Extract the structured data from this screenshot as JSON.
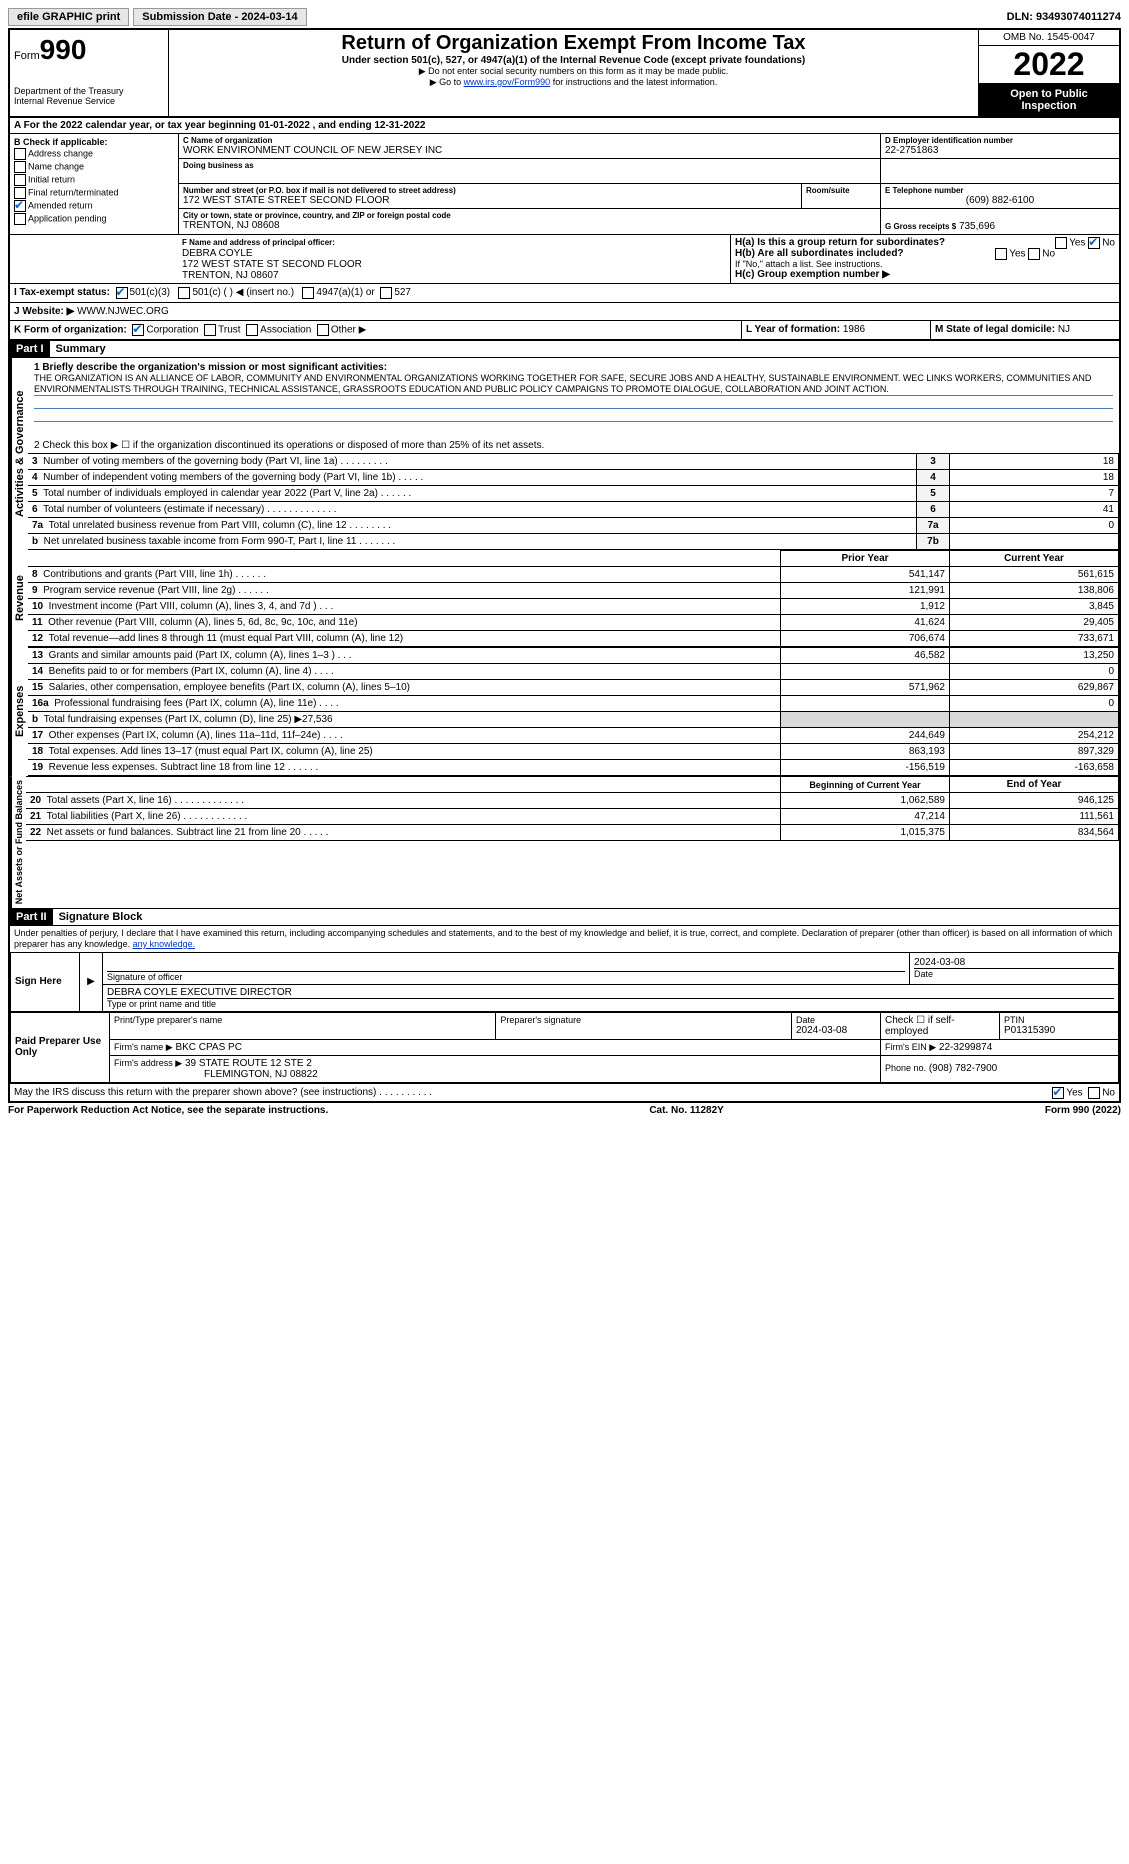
{
  "topbar": {
    "efile": "efile GRAPHIC print",
    "submission_btn": "Submission Date - 2024-03-14",
    "dln": "DLN: 93493074011274"
  },
  "header": {
    "form_word": "Form",
    "form_num": "990",
    "dept": "Department of the Treasury\nInternal Revenue Service",
    "title": "Return of Organization Exempt From Income Tax",
    "sub1": "Under section 501(c), 527, or 4947(a)(1) of the Internal Revenue Code (except private foundations)",
    "sub2": "▶ Do not enter social security numbers on this form as it may be made public.",
    "sub3_pre": "▶ Go to ",
    "sub3_link": "www.irs.gov/Form990",
    "sub3_post": " for instructions and the latest information.",
    "omb": "OMB No. 1545-0047",
    "year": "2022",
    "open": "Open to Public Inspection"
  },
  "A": {
    "text": "For the 2022 calendar year, or tax year beginning 01-01-2022    , and ending 12-31-2022"
  },
  "B": {
    "label": "B Check if applicable:",
    "items": [
      "Address change",
      "Name change",
      "Initial return",
      "Final return/terminated",
      "Amended return",
      "Application pending"
    ],
    "checked_index": 4
  },
  "C": {
    "name_lbl": "C Name of organization",
    "name": "WORK ENVIRONMENT COUNCIL OF NEW JERSEY INC",
    "dba_lbl": "Doing business as",
    "street_lbl": "Number and street (or P.O. box if mail is not delivered to street address)",
    "street": "172 WEST STATE STREET SECOND FLOOR",
    "room_lbl": "Room/suite",
    "city_lbl": "City or town, state or province, country, and ZIP or foreign postal code",
    "city": "TRENTON, NJ  08608"
  },
  "D": {
    "lbl": "D Employer identification number",
    "val": "22-2751863"
  },
  "E": {
    "lbl": "E Telephone number",
    "val": "(609) 882-6100"
  },
  "G": {
    "lbl": "G Gross receipts $",
    "val": "735,696"
  },
  "F": {
    "lbl": "F  Name and address of principal officer:",
    "name": "DEBRA COYLE",
    "addr1": "172 WEST STATE ST SECOND FLOOR",
    "addr2": "TRENTON, NJ  08607"
  },
  "H": {
    "a_lbl": "H(a)  Is this a group return for subordinates?",
    "b_lbl": "H(b)  Are all subordinates included?",
    "b_note": "If \"No,\" attach a list. See instructions.",
    "c_lbl": "H(c)  Group exemption number ▶",
    "yes": "Yes",
    "no": "No"
  },
  "I": {
    "lbl": "I    Tax-exempt status:",
    "opts": [
      "501(c)(3)",
      "501(c) (   ) ◀ (insert no.)",
      "4947(a)(1) or",
      "527"
    ]
  },
  "J": {
    "lbl": "J    Website: ▶",
    "val": "WWW.NJWEC.ORG"
  },
  "K": {
    "lbl": "K Form of organization:",
    "opts": [
      "Corporation",
      "Trust",
      "Association",
      "Other ▶"
    ]
  },
  "L": {
    "lbl": "L Year of formation:",
    "val": "1986"
  },
  "M": {
    "lbl": "M State of legal domicile:",
    "val": "NJ"
  },
  "part1": {
    "hdr": "Part I",
    "title": "Summary",
    "line1_lbl": "1  Briefly describe the organization's mission or most significant activities:",
    "line1_txt": "THE ORGANIZATION IS AN ALLIANCE OF LABOR, COMMUNITY AND ENVIRONMENTAL ORGANIZATIONS WORKING TOGETHER FOR SAFE, SECURE JOBS AND A HEALTHY, SUSTAINABLE ENVIRONMENT. WEC LINKS WORKERS, COMMUNITIES AND ENVIRONMENTALISTS THROUGH TRAINING, TECHNICAL ASSISTANCE, GRASSROOTS EDUCATION AND PUBLIC POLICY CAMPAIGNS TO PROMOTE DIALOGUE, COLLABORATION AND JOINT ACTION.",
    "line2": "2   Check this box ▶ ☐  if the organization discontinued its operations or disposed of more than 25% of its net assets.",
    "strips": {
      "gov": "Activities & Governance",
      "rev": "Revenue",
      "exp": "Expenses",
      "net": "Net Assets or Fund Balances"
    },
    "gov_rows": [
      {
        "n": "3",
        "t": "Number of voting members of the governing body (Part VI, line 1a)  .    .    .    .    .    .    .    .    .",
        "box": "3",
        "v": "18"
      },
      {
        "n": "4",
        "t": "Number of independent voting members of the governing body (Part VI, line 1b)    .    .    .    .    .",
        "box": "4",
        "v": "18"
      },
      {
        "n": "5",
        "t": "Total number of individuals employed in calendar year 2022 (Part V, line 2a)  .    .    .    .    .    .",
        "box": "5",
        "v": "7"
      },
      {
        "n": "6",
        "t": "Total number of volunteers (estimate if necessary)  .    .    .    .    .    .    .    .    .    .    .    .    .",
        "box": "6",
        "v": "41"
      },
      {
        "n": "7a",
        "t": "Total unrelated business revenue from Part VIII, column (C), line 12   .    .    .    .    .    .    .    .",
        "box": "7a",
        "v": "0"
      },
      {
        "n": "b",
        "t": "Net unrelated business taxable income from Form 990-T, Part I, line 11  .    .    .    .    .    .    .",
        "box": "7b",
        "v": ""
      }
    ],
    "col_hdr": {
      "prior": "Prior Year",
      "curr": "Current Year"
    },
    "rev_rows": [
      {
        "n": "8",
        "t": "Contributions and grants (Part VIII, line 1h)   .    .    .    .    .    .",
        "p": "541,147",
        "c": "561,615"
      },
      {
        "n": "9",
        "t": "Program service revenue (Part VIII, line 2g)   .    .    .    .    .    .",
        "p": "121,991",
        "c": "138,806"
      },
      {
        "n": "10",
        "t": "Investment income (Part VIII, column (A), lines 3, 4, and 7d )  .    .    .",
        "p": "1,912",
        "c": "3,845"
      },
      {
        "n": "11",
        "t": "Other revenue (Part VIII, column (A), lines 5, 6d, 8c, 9c, 10c, and 11e)",
        "p": "41,624",
        "c": "29,405"
      },
      {
        "n": "12",
        "t": "Total revenue—add lines 8 through 11 (must equal Part VIII, column (A), line 12)",
        "p": "706,674",
        "c": "733,671"
      }
    ],
    "exp_rows": [
      {
        "n": "13",
        "t": "Grants and similar amounts paid (Part IX, column (A), lines 1–3 )  .    .    .",
        "p": "46,582",
        "c": "13,250"
      },
      {
        "n": "14",
        "t": "Benefits paid to or for members (Part IX, column (A), line 4)  .    .    .    .",
        "p": "",
        "c": "0"
      },
      {
        "n": "15",
        "t": "Salaries, other compensation, employee benefits (Part IX, column (A), lines 5–10)",
        "p": "571,962",
        "c": "629,867"
      },
      {
        "n": "16a",
        "t": "Professional fundraising fees (Part IX, column (A), line 11e)  .    .    .    .",
        "p": "",
        "c": "0"
      },
      {
        "n": "b",
        "t": "Total fundraising expenses (Part IX, column (D), line 25) ▶27,536",
        "p": "SHADE",
        "c": "SHADE"
      },
      {
        "n": "17",
        "t": "Other expenses (Part IX, column (A), lines 11a–11d, 11f–24e)  .    .    .    .",
        "p": "244,649",
        "c": "254,212"
      },
      {
        "n": "18",
        "t": "Total expenses. Add lines 13–17 (must equal Part IX, column (A), line 25)",
        "p": "863,193",
        "c": "897,329"
      },
      {
        "n": "19",
        "t": "Revenue less expenses. Subtract line 18 from line 12    .    .    .    .    .    .",
        "p": "-156,519",
        "c": "-163,658"
      }
    ],
    "net_hdr": {
      "beg": "Beginning of Current Year",
      "end": "End of Year"
    },
    "net_rows": [
      {
        "n": "20",
        "t": "Total assets (Part X, line 16)  .    .    .    .    .    .    .    .    .    .    .    .    .",
        "p": "1,062,589",
        "c": "946,125"
      },
      {
        "n": "21",
        "t": "Total liabilities (Part X, line 26)    .    .    .    .    .    .    .    .    .    .    .    .",
        "p": "47,214",
        "c": "111,561"
      },
      {
        "n": "22",
        "t": "Net assets or fund balances. Subtract line 21 from line 20  .    .    .    .    .",
        "p": "1,015,375",
        "c": "834,564"
      }
    ]
  },
  "part2": {
    "hdr": "Part II",
    "title": "Signature Block",
    "decl": "Under penalties of perjury, I declare that I have examined this return, including accompanying schedules and statements, and to the best of my knowledge and belief, it is true, correct, and complete. Declaration of preparer (other than officer) is based on all information of which preparer has any knowledge.",
    "sign_here": "Sign Here",
    "sig_officer_lbl": "Signature of officer",
    "sig_date": "2024-03-08",
    "date_lbl": "Date",
    "officer_name": "DEBRA COYLE  EXECUTIVE DIRECTOR",
    "officer_name_lbl": "Type or print name and title",
    "paid": "Paid Preparer Use Only",
    "prep_name_lbl": "Print/Type preparer's name",
    "prep_sig_lbl": "Preparer's signature",
    "prep_date_lbl": "Date",
    "prep_date": "2024-03-08",
    "self_emp": "Check ☐ if self-employed",
    "ptin_lbl": "PTIN",
    "ptin": "P01315390",
    "firm_name_lbl": "Firm's name    ▶",
    "firm_name": "BKC CPAS PC",
    "firm_ein_lbl": "Firm's EIN ▶",
    "firm_ein": "22-3299874",
    "firm_addr_lbl": "Firm's address ▶",
    "firm_addr1": "39 STATE ROUTE 12 STE 2",
    "firm_addr2": "FLEMINGTON, NJ  08822",
    "phone_lbl": "Phone no.",
    "phone": "(908) 782-7900",
    "discuss": "May the IRS discuss this return with the preparer shown above? (see instructions)   .    .    .    .    .    .    .    .    .    ."
  },
  "footer": {
    "left": "For Paperwork Reduction Act Notice, see the separate instructions.",
    "mid": "Cat. No. 11282Y",
    "right": "Form 990 (2022)"
  }
}
